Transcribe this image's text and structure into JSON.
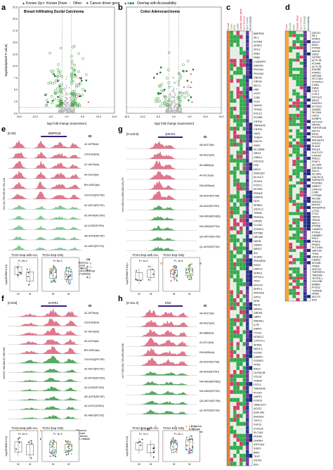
{
  "legend": {
    "known_up": "Known Up",
    "known_down": "Known Down",
    "other": "Other",
    "cancer_driver": "Cancer driver gene",
    "overlap": "Overlap with Accessibility"
  },
  "panel_labels": {
    "a": "a",
    "b": "b",
    "c": "c",
    "d": "d",
    "e": "e",
    "f": "f",
    "g": "g",
    "h": "h"
  },
  "volcano": {
    "a_title": "Breast Infiltrating Ductal Carcinoma",
    "b_title": "Colon Adenocarcinoma",
    "ylabel": "-log10(adjusted P-value)",
    "xlabel": "log2 fold change (expression)",
    "xticks": [
      "-15.0",
      "-10.0",
      "-5.0",
      "0.0",
      "5.0",
      "10.0",
      "15.0"
    ],
    "xticks_b": [
      "-15.0",
      "-10.0",
      "-5.0",
      "0.0",
      "5.0",
      "10.0",
      "15.0"
    ],
    "yticks": [
      "0.0",
      "2.5",
      "5.0",
      "7.5",
      "10.0",
      "12.5",
      "15.0",
      "17.5",
      "20.0",
      "22.5"
    ]
  },
  "track_e": {
    "range": "[0-29]",
    "gene": "BMPR1B",
    "id_header": "ID",
    "coord": "chr4:94,755,455-94,761,448",
    "rows": [
      "A2-A0T5(wt)",
      "C8-A12M(wt)",
      "A7-A0CH(wt)",
      "A0-A12H(wt)",
      "BH-A0DV(wt)",
      "C8-A12Q(R273H)",
      "A2-A0CX(R273C)",
      "A2-A0YM(R175H)",
      "A2-A12E(R175H)",
      "AR-A0TR(R273P)",
      "A2-A0EX(R273C)"
    ],
    "annotations": [
      "Enhancer",
      "G-Quad",
      "Co-factors",
      "PS3/FOXN/F-KB",
      "PS3 Halfsite"
    ]
  },
  "track_f": {
    "range": "[0-204]",
    "gene": "DAPK1",
    "id_header": "ID",
    "coord": "chr9:87,480,883-87,480,038",
    "rows": [
      "A2-A0T5(wt)",
      "C8-A12M(wt)",
      "A7-A0CH(wt)",
      "A0-A12H(wt)",
      "BH-A0DV(wt)",
      "C8-A12Q(R273H)",
      "A2-A0CX(R273C)",
      "A2-A0YM(R175H)",
      "A2-A12E(R175H)",
      "AR-A0TR(R273P)",
      "A2-A13Y(G245C)",
      "A2-A0EX(R273C)"
    ],
    "annotations": [
      "Enhancer",
      "G-Quad",
      "Co-factors",
      "NF1-Halfsite"
    ]
  },
  "track_g": {
    "range": "[0-143.9]",
    "gene": "QSOX1",
    "id_header": "ID",
    "coord": "chr1:180,124,808-180,126,271",
    "rows": [
      "AA-A01T(wt)",
      "AA-A01X(wt)",
      "AD-6889(wt)",
      "AY-A71X(wt)",
      "DM-A280(wt)",
      "AA-A01P(R175H)",
      "AA-A010(R175H)",
      "NH-A6GA(R248Q)",
      "NH-A50V(R273H)",
      "QG-A5YV(R175H)",
      "QL-A97D(R273H)"
    ],
    "annotations": [
      "Enhancer",
      "ATF3"
    ]
  },
  "track_h": {
    "range": "[0-101.3]",
    "gene": "EN2",
    "id_header": "ID",
    "coord": "chr7:155,454,725-155,458,158",
    "rows": [
      "AA-A01T(wt)",
      "AA-A01X(wt)",
      "AD-6889(wt)",
      "AY-A71X(wt)",
      "DM-A280(wt)",
      "AA-A01P(R175H)",
      "AA-A010(R175H)",
      "NH-A6GA(R248Q)",
      "NH-A50V(R273H)",
      "QG-A5YV(R175H)",
      "QL-A97D(R273H)"
    ],
    "annotations": [
      "Enhancer",
      "G-Quad",
      "Co-factors"
    ]
  },
  "boxes": {
    "e_left_title": "TCGA Exp with Acc.",
    "e_right_title": "TCGA Exp Only",
    "e_left_p": "P= 8e-2",
    "e_right_p": "P= 8e-3",
    "f_left_title": "TCGA Exp with Acc.",
    "f_right_title": "TCGA Exp Only",
    "f_left_p": "P= 4e-3",
    "f_right_p": "P= 1e-3",
    "g_left_title": "TCGA Exp with Acc.",
    "g_right_title": "TCGA Exp Only",
    "g_left_p": "P= 4e-2",
    "g_right_p": "P= 1e-8",
    "h_left_title": "TCGA Exp with Acc.",
    "h_right_title": "TCGA Exp Only",
    "h_left_p": "P= 7e-3",
    "h_right_p": "P= 4e-1",
    "ylabel": "log2(RSEM+0.01)",
    "xw": "W",
    "xm": "M",
    "cn_title": "CN",
    "cn_values": [
      "-2",
      "-1",
      "0",
      "1",
      "2"
    ]
  },
  "heat_c": {
    "col_labels": [
      "Breast",
      "Colon",
      "KIRC",
      "LUAD",
      "Cancer driver gene",
      "Up in Breast",
      "Up in Colon",
      "Accessibility"
    ],
    "genes": [
      "BMPR1B",
      "ISL1",
      "KCNK6",
      "NTRK2",
      "MYLK",
      "FBN1",
      "FBN2",
      "CXADRP3",
      "DRAXIN",
      "PHLDA1",
      "PHLDA3",
      "CBLN2",
      "CBLN4",
      "SIDT1",
      "HRK",
      "UCP1",
      "GJB2",
      "TLE4",
      "NUAK2",
      "TP53I3",
      "POC1C",
      "KCNH8",
      "CNTN4",
      "TMEM145",
      "CNTN4",
      "HAO1",
      "THSD4",
      "DACH1",
      "DKK2",
      "SLC38A6",
      "NRG3",
      "GRB14",
      "DOCK10",
      "FRK",
      "MSX2",
      "KIAA1257",
      "ELOVL2",
      "SCN7A",
      "FOXC1",
      "MYOB2",
      "PRDM2",
      "DIAPH3",
      "FAT3",
      "SPIRE1",
      "GDX1L2",
      "TREM1",
      "PRSS16",
      "GPR52",
      "CLCA5",
      "STEAP4",
      "ATP2B2",
      "NRCAM",
      "NAT8L",
      "LAMA3",
      "NR2F2",
      "ID4",
      "VCAM1",
      "PRKAR2B",
      "RGS4",
      "HHIPL2",
      "NTRK3",
      "DPYSL4",
      "TFEC",
      "MYEOV",
      "SPRY4",
      "PRKACB",
      "GPX3",
      "NFIB",
      "MSX1",
      "NR4A3",
      "GREM1",
      "GRIP1",
      "PMEPA1",
      "IL7R",
      "DAPK1",
      "TTYH1",
      "NT5DC2",
      "CYP27C1",
      "SPSB1",
      "NKX3-1",
      "FOXA2",
      "CAMKV",
      "FGFBP1",
      "TPM2",
      "RHOJ",
      "OLFML2B",
      "CCL26",
      "THRSP",
      "FSTL1",
      "TMEM145",
      "PCDH7",
      "UHRF1",
      "FOXO3",
      "OMECUT2",
      "ACAT2",
      "EGFLAM",
      "ENDOD1",
      "TMTC1",
      "FGF13",
      "ZYG11A",
      "SLC1A3",
      "PDE4B",
      "ZNF804",
      "ATP13A4",
      "IGSF3",
      "BMI2",
      "TIGIT",
      "GSTA1",
      "EN1"
    ]
  },
  "heat_d": {
    "col_labels": [
      "Colon",
      "Breast",
      "KIRC",
      "Cancer driver",
      "Up in Colon",
      "Up in Breast",
      "Accessibility"
    ],
    "genes": [
      "QSOX1",
      "ISL1",
      "NTRK2",
      "ABCA7",
      "ANK1",
      "PTPRK",
      "ABCB1",
      "DDR2",
      "GSTM2",
      "ACTL7B",
      "KCNH8",
      "ACTL7B",
      "ENDRB",
      "FRMD3",
      "NRCAM",
      "SLC14A1",
      "ST3GAL4",
      "CD5N",
      "FMN2",
      "LYZL1",
      "LYZL4",
      "DPYSL5",
      "MRCZ",
      "RASSF4",
      "KCTD15",
      "SAMD5",
      "SLC9A4",
      "LMO3",
      "IGFBP3",
      "NOTCH3",
      "NRXN1",
      "TNFRSF11B",
      "RPLP2",
      "RPX4",
      "PHOX2B",
      "ARHGEF3",
      "DCDC2",
      "PLAC8",
      "RGS16",
      "SULT1C2",
      "CMTM4",
      "PDE1C",
      "PSAT1",
      "SLC4A4",
      "DHCR24",
      "SALL1",
      "SLC6A1",
      "GALNT13",
      "RAPGEF4",
      "PDZRN3",
      "DMRT3",
      "LRRC43",
      "LGR6",
      "LYPD6B",
      "KIF26A",
      "ANXA13",
      "ANXA3",
      "ARHGAP15",
      "LZTS1",
      "CTSZ",
      "TBX15",
      "TBX18",
      "ABCC1",
      "PTPRB",
      "CAMKK2",
      "PTPN3",
      "GABBR2",
      "RGL2",
      "PPM1A",
      "FRAS1",
      "SLC24A2",
      "GRP150",
      "TPM1",
      "GPR176",
      "LAMA3",
      "MYO5B",
      "TRIM2",
      "ZNF134",
      "TNFRSF21",
      "TMEM35",
      "TFCP2L1",
      "CDC20B",
      "ERBB4",
      "PTGS2",
      "TSPAN8",
      "SNAI2",
      "ADCY3",
      "EN2"
    ]
  }
}
